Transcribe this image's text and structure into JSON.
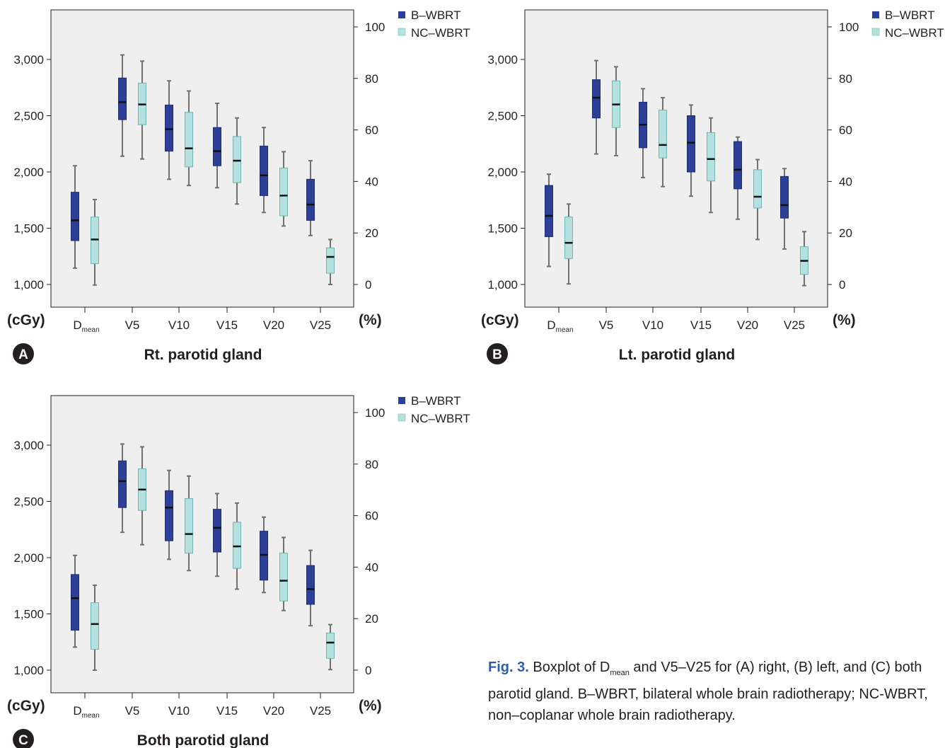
{
  "legend": {
    "b_label": "B–WBRT",
    "nc_label": "NC–WBRT"
  },
  "colors": {
    "b_fill": "#2e3f98",
    "nc_fill": "#b5e0e0",
    "plot_bg": "#efefef",
    "whisker": "#707070",
    "panel_badge": "#231f20"
  },
  "left_axis_unit": "(cGy)",
  "right_axis_unit": "(%)",
  "caption": {
    "fig_label": "Fig. 3.",
    "text_pre": "Boxplot of D",
    "text_sub": "mean",
    "text_post": " and V5–V25 for (A) right, (B) left, and (C) both parotid gland. B–WBRT, bilateral whole brain radiotherapy; NC-WBRT, non–coplanar whole brain radiotherapy."
  },
  "chart_data": [
    {
      "type": "box",
      "panel": "A",
      "title": "Rt. parotid gland",
      "categories": [
        {
          "main": "D",
          "sub": "mean"
        },
        {
          "main": "V5",
          "sub": ""
        },
        {
          "main": "V10",
          "sub": ""
        },
        {
          "main": "V15",
          "sub": ""
        },
        {
          "main": "V20",
          "sub": ""
        },
        {
          "main": "V25",
          "sub": ""
        }
      ],
      "left_axis": {
        "unit": "(cGy)",
        "ylim": [
          1000,
          3000
        ],
        "ticks": [
          "1,000",
          "1,500",
          "2,000",
          "2,500",
          "3,000"
        ],
        "applies_to": "Dmean"
      },
      "right_axis": {
        "unit": "(%)",
        "ylim": [
          0,
          100
        ],
        "ticks": [
          "0",
          "20",
          "40",
          "60",
          "80",
          "100"
        ],
        "applies_to": "V5–V25"
      },
      "series": [
        {
          "name": "B–WBRT",
          "boxes": [
            {
              "min": 1145,
              "q1": 1390,
              "median": 1570,
              "q3": 1820,
              "max": 2055
            },
            {
              "min": 2140,
              "q1": 2465,
              "median": 2620,
              "q3": 2835,
              "max": 3040
            },
            {
              "min": 1935,
              "q1": 2185,
              "median": 2380,
              "q3": 2595,
              "max": 2810
            },
            {
              "min": 1860,
              "q1": 2055,
              "median": 2185,
              "q3": 2395,
              "max": 2610
            },
            {
              "min": 1640,
              "q1": 1790,
              "median": 1970,
              "q3": 2230,
              "max": 2395
            },
            {
              "min": 1435,
              "q1": 1570,
              "median": 1710,
              "q3": 1935,
              "max": 2100
            }
          ]
        },
        {
          "name": "NC–WBRT",
          "boxes": [
            {
              "min": 995,
              "q1": 1185,
              "median": 1400,
              "q3": 1600,
              "max": 1755
            },
            {
              "min": 2115,
              "q1": 2420,
              "median": 2600,
              "q3": 2790,
              "max": 2985
            },
            {
              "min": 1880,
              "q1": 2045,
              "median": 2210,
              "q3": 2530,
              "max": 2720
            },
            {
              "min": 1715,
              "q1": 1905,
              "median": 2100,
              "q3": 2315,
              "max": 2480
            },
            {
              "min": 1520,
              "q1": 1610,
              "median": 1790,
              "q3": 2035,
              "max": 2180
            },
            {
              "min": 1000,
              "q1": 1100,
              "median": 1245,
              "q3": 1325,
              "max": 1400
            }
          ]
        }
      ]
    },
    {
      "type": "box",
      "panel": "B",
      "title": "Lt. parotid gland",
      "categories": [
        {
          "main": "D",
          "sub": "mean"
        },
        {
          "main": "V5",
          "sub": ""
        },
        {
          "main": "V10",
          "sub": ""
        },
        {
          "main": "V15",
          "sub": ""
        },
        {
          "main": "V20",
          "sub": ""
        },
        {
          "main": "V25",
          "sub": ""
        }
      ],
      "left_axis": {
        "unit": "(cGy)",
        "ylim": [
          1000,
          3000
        ],
        "ticks": [
          "1,000",
          "1,500",
          "2,000",
          "2,500",
          "3,000"
        ],
        "applies_to": "Dmean"
      },
      "right_axis": {
        "unit": "(%)",
        "ylim": [
          0,
          100
        ],
        "ticks": [
          "0",
          "20",
          "40",
          "60",
          "80",
          "100"
        ],
        "applies_to": "V5–V25"
      },
      "series": [
        {
          "name": "B–WBRT",
          "boxes": [
            {
              "min": 1160,
              "q1": 1425,
              "median": 1610,
              "q3": 1880,
              "max": 1980
            },
            {
              "min": 2160,
              "q1": 2480,
              "median": 2660,
              "q3": 2820,
              "max": 2990
            },
            {
              "min": 1950,
              "q1": 2215,
              "median": 2420,
              "q3": 2620,
              "max": 2740
            },
            {
              "min": 1785,
              "q1": 2000,
              "median": 2260,
              "q3": 2500,
              "max": 2595
            },
            {
              "min": 1580,
              "q1": 1850,
              "median": 2020,
              "q3": 2270,
              "max": 2310
            },
            {
              "min": 1315,
              "q1": 1590,
              "median": 1705,
              "q3": 1960,
              "max": 2030
            }
          ]
        },
        {
          "name": "NC–WBRT",
          "boxes": [
            {
              "min": 1005,
              "q1": 1230,
              "median": 1370,
              "q3": 1600,
              "max": 1715
            },
            {
              "min": 2145,
              "q1": 2395,
              "median": 2600,
              "q3": 2810,
              "max": 2935
            },
            {
              "min": 1870,
              "q1": 2125,
              "median": 2240,
              "q3": 2550,
              "max": 2660
            },
            {
              "min": 1640,
              "q1": 1920,
              "median": 2115,
              "q3": 2350,
              "max": 2480
            },
            {
              "min": 1400,
              "q1": 1680,
              "median": 1780,
              "q3": 2020,
              "max": 2110
            },
            {
              "min": 990,
              "q1": 1090,
              "median": 1210,
              "q3": 1335,
              "max": 1470
            }
          ]
        }
      ]
    },
    {
      "type": "box",
      "panel": "C",
      "title": "Both parotid gland",
      "categories": [
        {
          "main": "D",
          "sub": "mean"
        },
        {
          "main": "V5",
          "sub": ""
        },
        {
          "main": "V10",
          "sub": ""
        },
        {
          "main": "V15",
          "sub": ""
        },
        {
          "main": "V20",
          "sub": ""
        },
        {
          "main": "V25",
          "sub": ""
        }
      ],
      "left_axis": {
        "unit": "(cGy)",
        "ylim": [
          1000,
          3000
        ],
        "ticks": [
          "1,000",
          "1,500",
          "2,000",
          "2,500",
          "3,000"
        ],
        "applies_to": "Dmean"
      },
      "right_axis": {
        "unit": "(%)",
        "ylim": [
          0,
          100
        ],
        "ticks": [
          "0",
          "20",
          "40",
          "60",
          "80",
          "100"
        ],
        "applies_to": "V5–V25"
      },
      "series": [
        {
          "name": "B–WBRT",
          "boxes": [
            {
              "min": 1205,
              "q1": 1355,
              "median": 1640,
              "q3": 1850,
              "max": 2020
            },
            {
              "min": 2225,
              "q1": 2445,
              "median": 2680,
              "q3": 2860,
              "max": 3010
            },
            {
              "min": 1985,
              "q1": 2150,
              "median": 2445,
              "q3": 2595,
              "max": 2775
            },
            {
              "min": 1835,
              "q1": 2050,
              "median": 2265,
              "q3": 2430,
              "max": 2570
            },
            {
              "min": 1690,
              "q1": 1800,
              "median": 2025,
              "q3": 2235,
              "max": 2360
            },
            {
              "min": 1395,
              "q1": 1585,
              "median": 1720,
              "q3": 1930,
              "max": 2065
            }
          ]
        },
        {
          "name": "NC–WBRT",
          "boxes": [
            {
              "min": 1000,
              "q1": 1185,
              "median": 1410,
              "q3": 1600,
              "max": 1755
            },
            {
              "min": 2115,
              "q1": 2420,
              "median": 2605,
              "q3": 2790,
              "max": 2985
            },
            {
              "min": 1885,
              "q1": 2040,
              "median": 2210,
              "q3": 2525,
              "max": 2725
            },
            {
              "min": 1720,
              "q1": 1905,
              "median": 2100,
              "q3": 2315,
              "max": 2485
            },
            {
              "min": 1530,
              "q1": 1615,
              "median": 1795,
              "q3": 2040,
              "max": 2180
            },
            {
              "min": 1005,
              "q1": 1105,
              "median": 1245,
              "q3": 1330,
              "max": 1405
            }
          ]
        }
      ]
    }
  ]
}
